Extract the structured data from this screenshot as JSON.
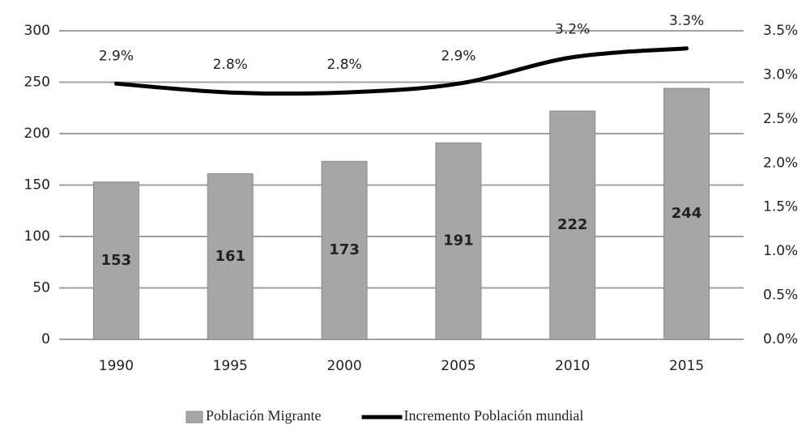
{
  "chart_data": {
    "type": "bar",
    "categories": [
      "1990",
      "1995",
      "2000",
      "2005",
      "2010",
      "2015"
    ],
    "series": [
      {
        "name": "Población Migrante",
        "type": "bar",
        "color": "#a6a6a6",
        "values": [
          153,
          161,
          173,
          191,
          222,
          244
        ]
      },
      {
        "name": "Incremento Población mundial",
        "type": "line",
        "axis": "y2",
        "color": "#000000",
        "values": [
          2.9,
          2.8,
          2.8,
          2.9,
          3.2,
          3.3
        ],
        "value_labels": [
          "2.9%",
          "2.8%",
          "2.8%",
          "2.9%",
          "3.2%",
          "3.3%"
        ]
      }
    ],
    "ylim": [
      0,
      300
    ],
    "yticks": [
      0,
      50,
      100,
      150,
      200,
      250,
      300
    ],
    "y2lim": [
      0,
      3.5
    ],
    "y2ticks": [
      {
        "value": 0,
        "label": "0.0%"
      },
      {
        "value": 0.5,
        "label": "0.5%"
      },
      {
        "value": 1,
        "label": "1.0%"
      },
      {
        "value": 1.5,
        "label": "1.5%"
      },
      {
        "value": 2,
        "label": "2.0%"
      },
      {
        "value": 2.5,
        "label": "2.5%"
      },
      {
        "value": 3,
        "label": "3.0%"
      },
      {
        "value": 3.5,
        "label": "3.5%"
      }
    ],
    "grid": true,
    "legend": "bottom"
  }
}
